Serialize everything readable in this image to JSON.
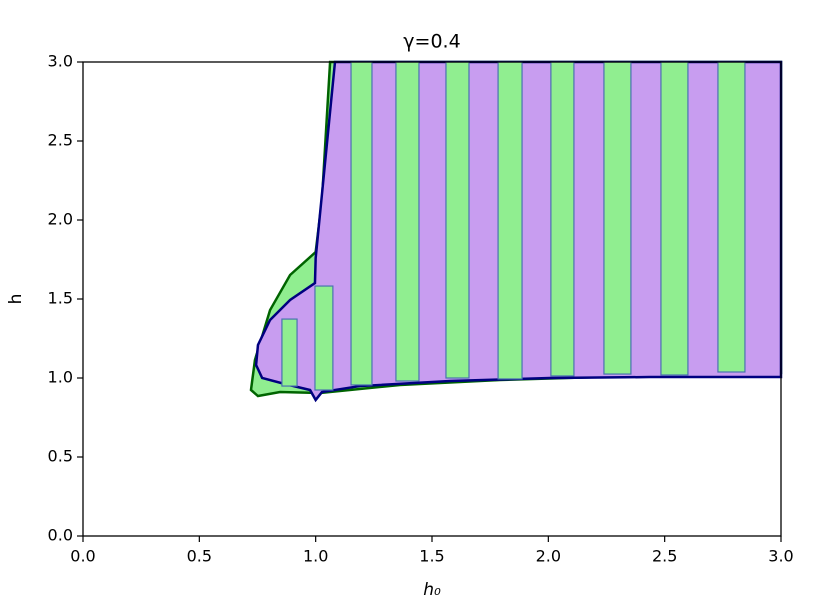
{
  "chart_data": {
    "type": "region",
    "title": "γ=0.4",
    "xlabel": "h₀",
    "ylabel": "h",
    "xlim": [
      0,
      3
    ],
    "ylim": [
      0,
      3
    ],
    "xticks": [
      {
        "value": 0,
        "label": "0.0"
      },
      0.5,
      {
        "value": 1,
        "label": "1.0"
      },
      1.5,
      {
        "value": 2,
        "label": "2.0"
      },
      2.5,
      {
        "value": 3,
        "label": "3.0"
      }
    ],
    "yticks": [
      {
        "value": 0,
        "label": "0.0"
      },
      0.5,
      {
        "value": 1,
        "label": "1.0"
      },
      1.5,
      {
        "value": 2,
        "label": "2.0"
      },
      2.5,
      {
        "value": 3,
        "label": "3.0"
      }
    ],
    "regions": [
      {
        "color": "#90ee90",
        "edgecolor": "#006400",
        "x": [
          1.062,
          1.027,
          1.0,
          0.89,
          0.804,
          0.739,
          0.722,
          0.752,
          0.847,
          1.019,
          1.362,
          1.792,
          2.222,
          2.652,
          3.0,
          3.0
        ],
        "y": [
          3.0,
          2.127,
          1.797,
          1.652,
          1.43,
          1.114,
          0.924,
          0.886,
          0.911,
          0.905,
          0.956,
          0.987,
          1.006,
          1.019,
          1.032,
          3.0
        ]
      },
      {
        "color": "#c89df0",
        "edgecolor": "#000080",
        "x": [
          1.083,
          1.0,
          0.997,
          0.89,
          0.804,
          0.752,
          0.744,
          0.77,
          0.868,
          0.976,
          1.0,
          1.027,
          1.19,
          1.577,
          2.007,
          2.437,
          3.0,
          3.0
        ],
        "y": [
          3.0,
          1.759,
          1.601,
          1.494,
          1.367,
          1.209,
          1.082,
          1.0,
          0.962,
          0.924,
          0.861,
          0.911,
          0.949,
          0.981,
          1.0,
          1.006,
          1.006,
          3.0
        ]
      }
    ],
    "bars": {
      "color": "#90ee90",
      "edgecolor": "#4a72b0",
      "x0": [
        0.855,
        0.997,
        1.152,
        1.345,
        1.56,
        1.784,
        2.011,
        2.239,
        2.484,
        2.729
      ],
      "x1": [
        0.92,
        1.074,
        1.242,
        1.444,
        1.659,
        1.887,
        2.11,
        2.355,
        2.6,
        2.845
      ],
      "bottom": [
        0.949,
        0.924,
        0.956,
        0.981,
        1.0,
        0.994,
        1.013,
        1.025,
        1.019,
        1.038
      ],
      "top": [
        1.373,
        1.582,
        3.0,
        3.0,
        3.0,
        3.0,
        3.0,
        3.0,
        3.0,
        3.0
      ]
    }
  }
}
